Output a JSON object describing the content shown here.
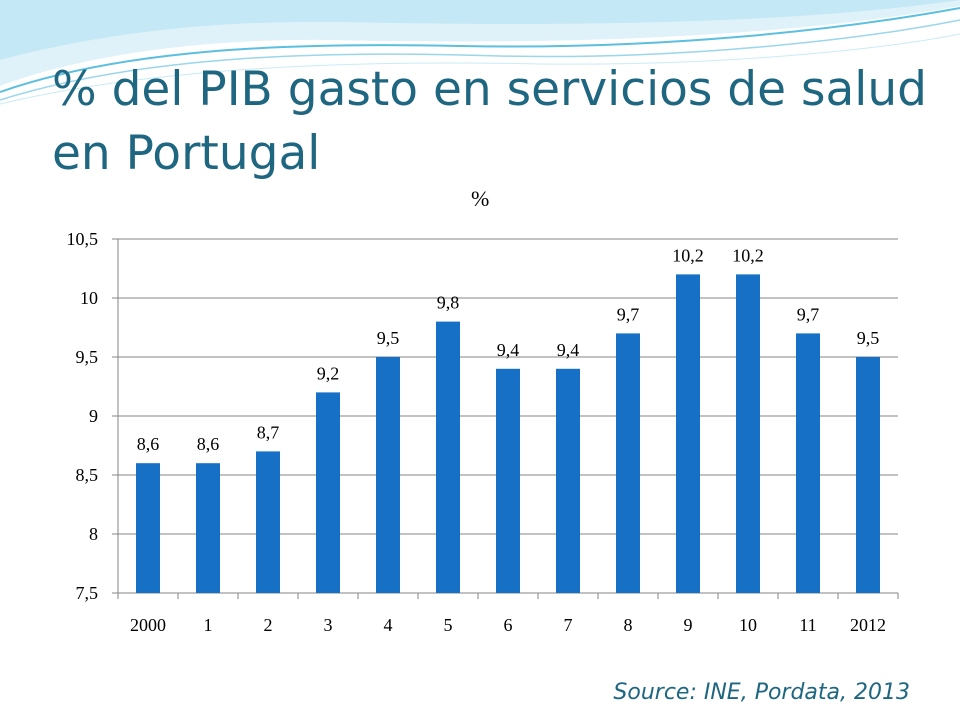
{
  "slide": {
    "title": "% del PIB gasto en servicios de salud en Portugal",
    "unit_label": "%",
    "source": "Source: INE, Pordata, 2013"
  },
  "colors": {
    "bar": "#1570c6",
    "title": "#1f6680",
    "wave": "#5bbfe0",
    "grid": "#868686"
  },
  "chart_data": {
    "type": "bar",
    "categories": [
      "2000",
      "1",
      "2",
      "3",
      "4",
      "5",
      "6",
      "7",
      "8",
      "9",
      "10",
      "11",
      "2012"
    ],
    "values": [
      8.6,
      8.6,
      8.7,
      9.2,
      9.5,
      9.8,
      9.4,
      9.4,
      9.7,
      10.2,
      10.2,
      9.7,
      9.5
    ],
    "data_labels": [
      "8,6",
      "8,6",
      "8,7",
      "9,2",
      "9,5",
      "9,8",
      "9,4",
      "9,4",
      "9,7",
      "10,2",
      "10,2",
      "9,7",
      "9,5"
    ],
    "yticks": [
      7.5,
      8,
      8.5,
      9,
      9.5,
      10,
      10.5
    ],
    "ytick_labels": [
      "7,5",
      "8",
      "8,5",
      "9",
      "9,5",
      "10",
      "10,5"
    ],
    "ylim": [
      7.5,
      10.5
    ],
    "title": "",
    "xlabel": "",
    "ylabel": "%",
    "grid": true,
    "legend": "none"
  }
}
